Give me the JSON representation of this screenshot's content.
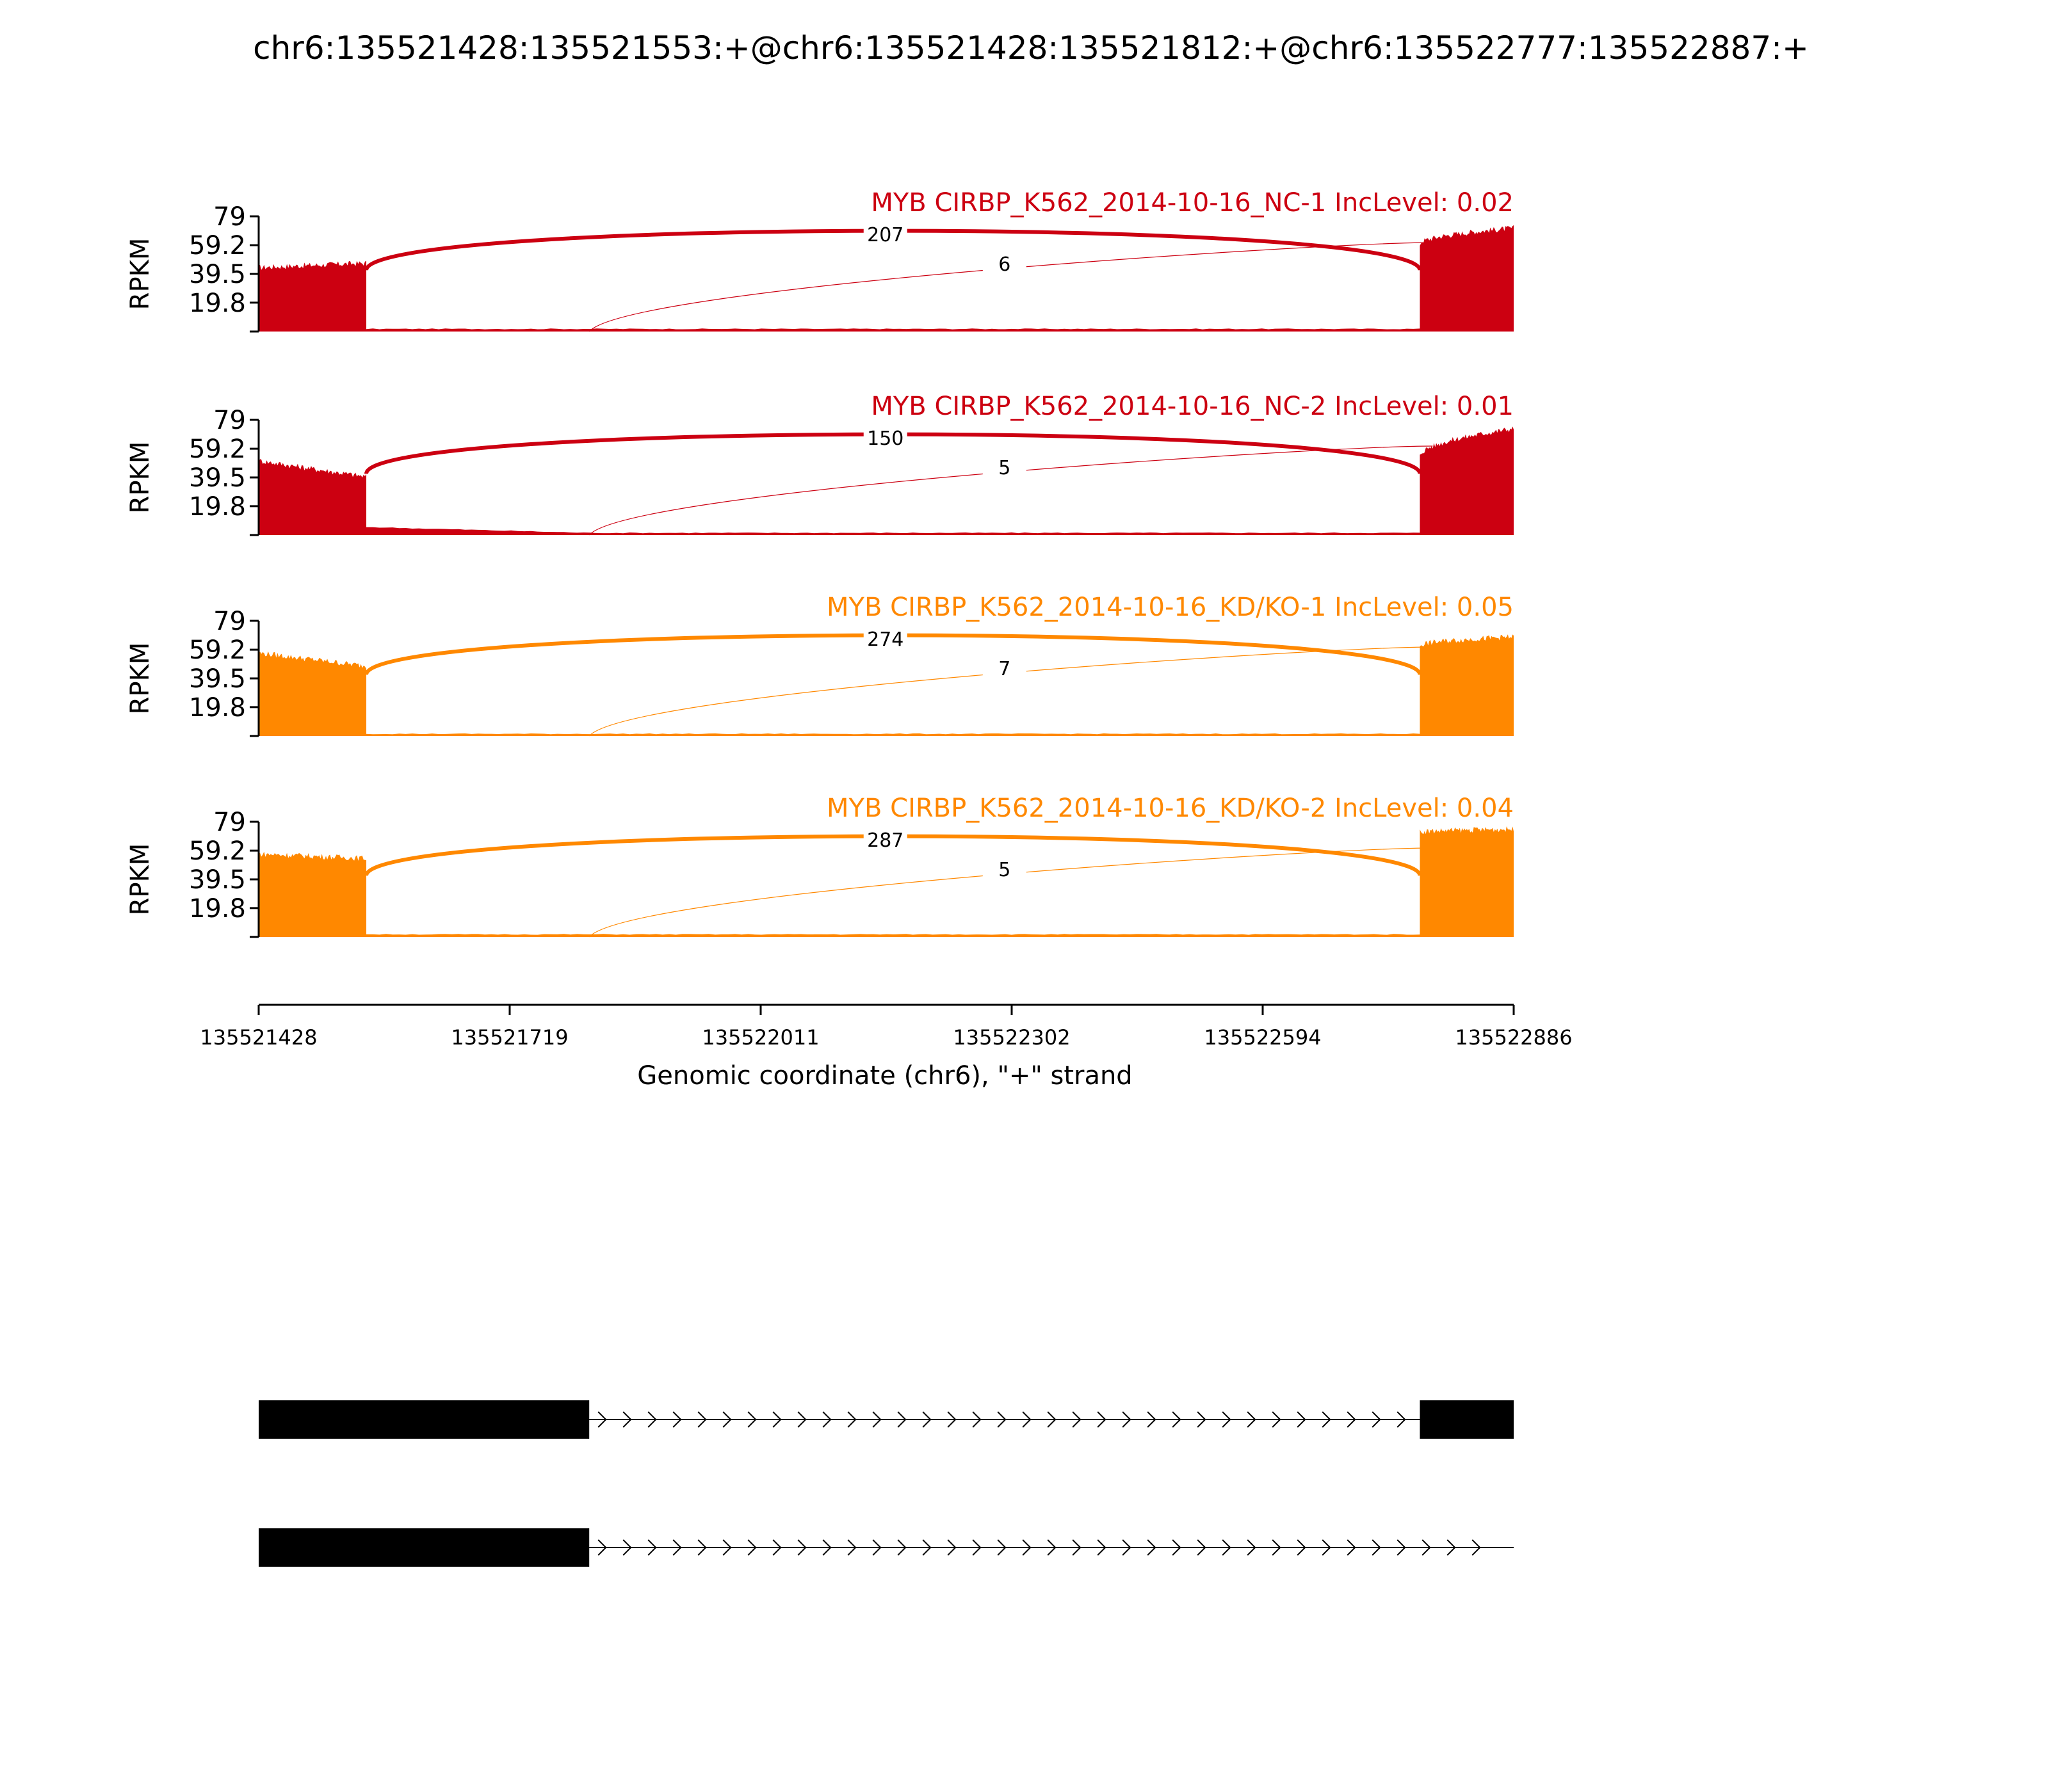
{
  "chart_data": {
    "type": "area",
    "title": "chr6:135521428:135521553:+@chr6:135521428:135521812:+@chr6:135522777:135522887:+",
    "xlabel": "Genomic coordinate (chr6), \"+\" strand",
    "ylabel": "RPKM",
    "xlim": [
      135521428,
      135522886
    ],
    "ylim": [
      0,
      79
    ],
    "x_ticks": [
      "135521428",
      "135521719",
      "135522011",
      "135522302",
      "135522594",
      "135522886"
    ],
    "y_ticks": [
      "79",
      "59.2",
      "39.5",
      "19.8"
    ],
    "exon_regions": [
      {
        "start": 135521428,
        "end": 135521553
      },
      {
        "start": 135521553,
        "end": 135521812
      },
      {
        "start": 135522777,
        "end": 135522886
      }
    ],
    "series": [
      {
        "name": "MYB CIRBP_K562_2014-10-16_NC-1 IncLevel: 0.02",
        "color": "#cc0011",
        "exon1": {
          "start": 44,
          "end": 47,
          "jitter": 2
        },
        "middle": 1.5,
        "exon3": {
          "start": 60,
          "end": 71,
          "jitter": 2
        },
        "junctions": [
          {
            "label": "207",
            "from": 135521553,
            "to": 135522777
          },
          {
            "label": "6",
            "from": 135521812,
            "to": 135522777
          }
        ]
      },
      {
        "name": "MYB CIRBP_K562_2014-10-16_NC-2 IncLevel: 0.01",
        "color": "#cc0011",
        "exon1": {
          "start": 51,
          "end": 40,
          "jitter": 2
        },
        "middle": 1.2,
        "middle_hump": 4,
        "exon3": {
          "start": 54,
          "end": 73,
          "jitter": 2
        },
        "junctions": [
          {
            "label": "150",
            "from": 135521553,
            "to": 135522777
          },
          {
            "label": "5",
            "from": 135521812,
            "to": 135522777
          }
        ]
      },
      {
        "name": "MYB CIRBP_K562_2014-10-16_KD/KO-1 IncLevel: 0.05",
        "color": "#ff8800",
        "exon1": {
          "start": 57,
          "end": 48,
          "jitter": 2
        },
        "middle": 1.2,
        "exon3": {
          "start": 62,
          "end": 68,
          "jitter": 2
        },
        "junctions": [
          {
            "label": "274",
            "from": 135521553,
            "to": 135522777
          },
          {
            "label": "7",
            "from": 135521812,
            "to": 135522777
          }
        ]
      },
      {
        "name": "MYB CIRBP_K562_2014-10-16_KD/KO-2 IncLevel: 0.04",
        "color": "#ff8800",
        "exon1": {
          "start": 57,
          "end": 54,
          "jitter": 2
        },
        "middle": 1.5,
        "exon3": {
          "start": 72,
          "end": 74,
          "jitter": 2
        },
        "junctions": [
          {
            "label": "287",
            "from": 135521553,
            "to": 135522777
          },
          {
            "label": "5",
            "from": 135521812,
            "to": 135522777
          }
        ]
      }
    ],
    "transcripts": [
      {
        "exons": [
          {
            "start": 135521428,
            "end": 135521812
          },
          {
            "start": 135522777,
            "end": 135522886
          }
        ],
        "intron_end": 135522777
      },
      {
        "exons": [
          {
            "start": 135521428,
            "end": 135521812
          }
        ],
        "intron_end": 135522886
      }
    ]
  }
}
